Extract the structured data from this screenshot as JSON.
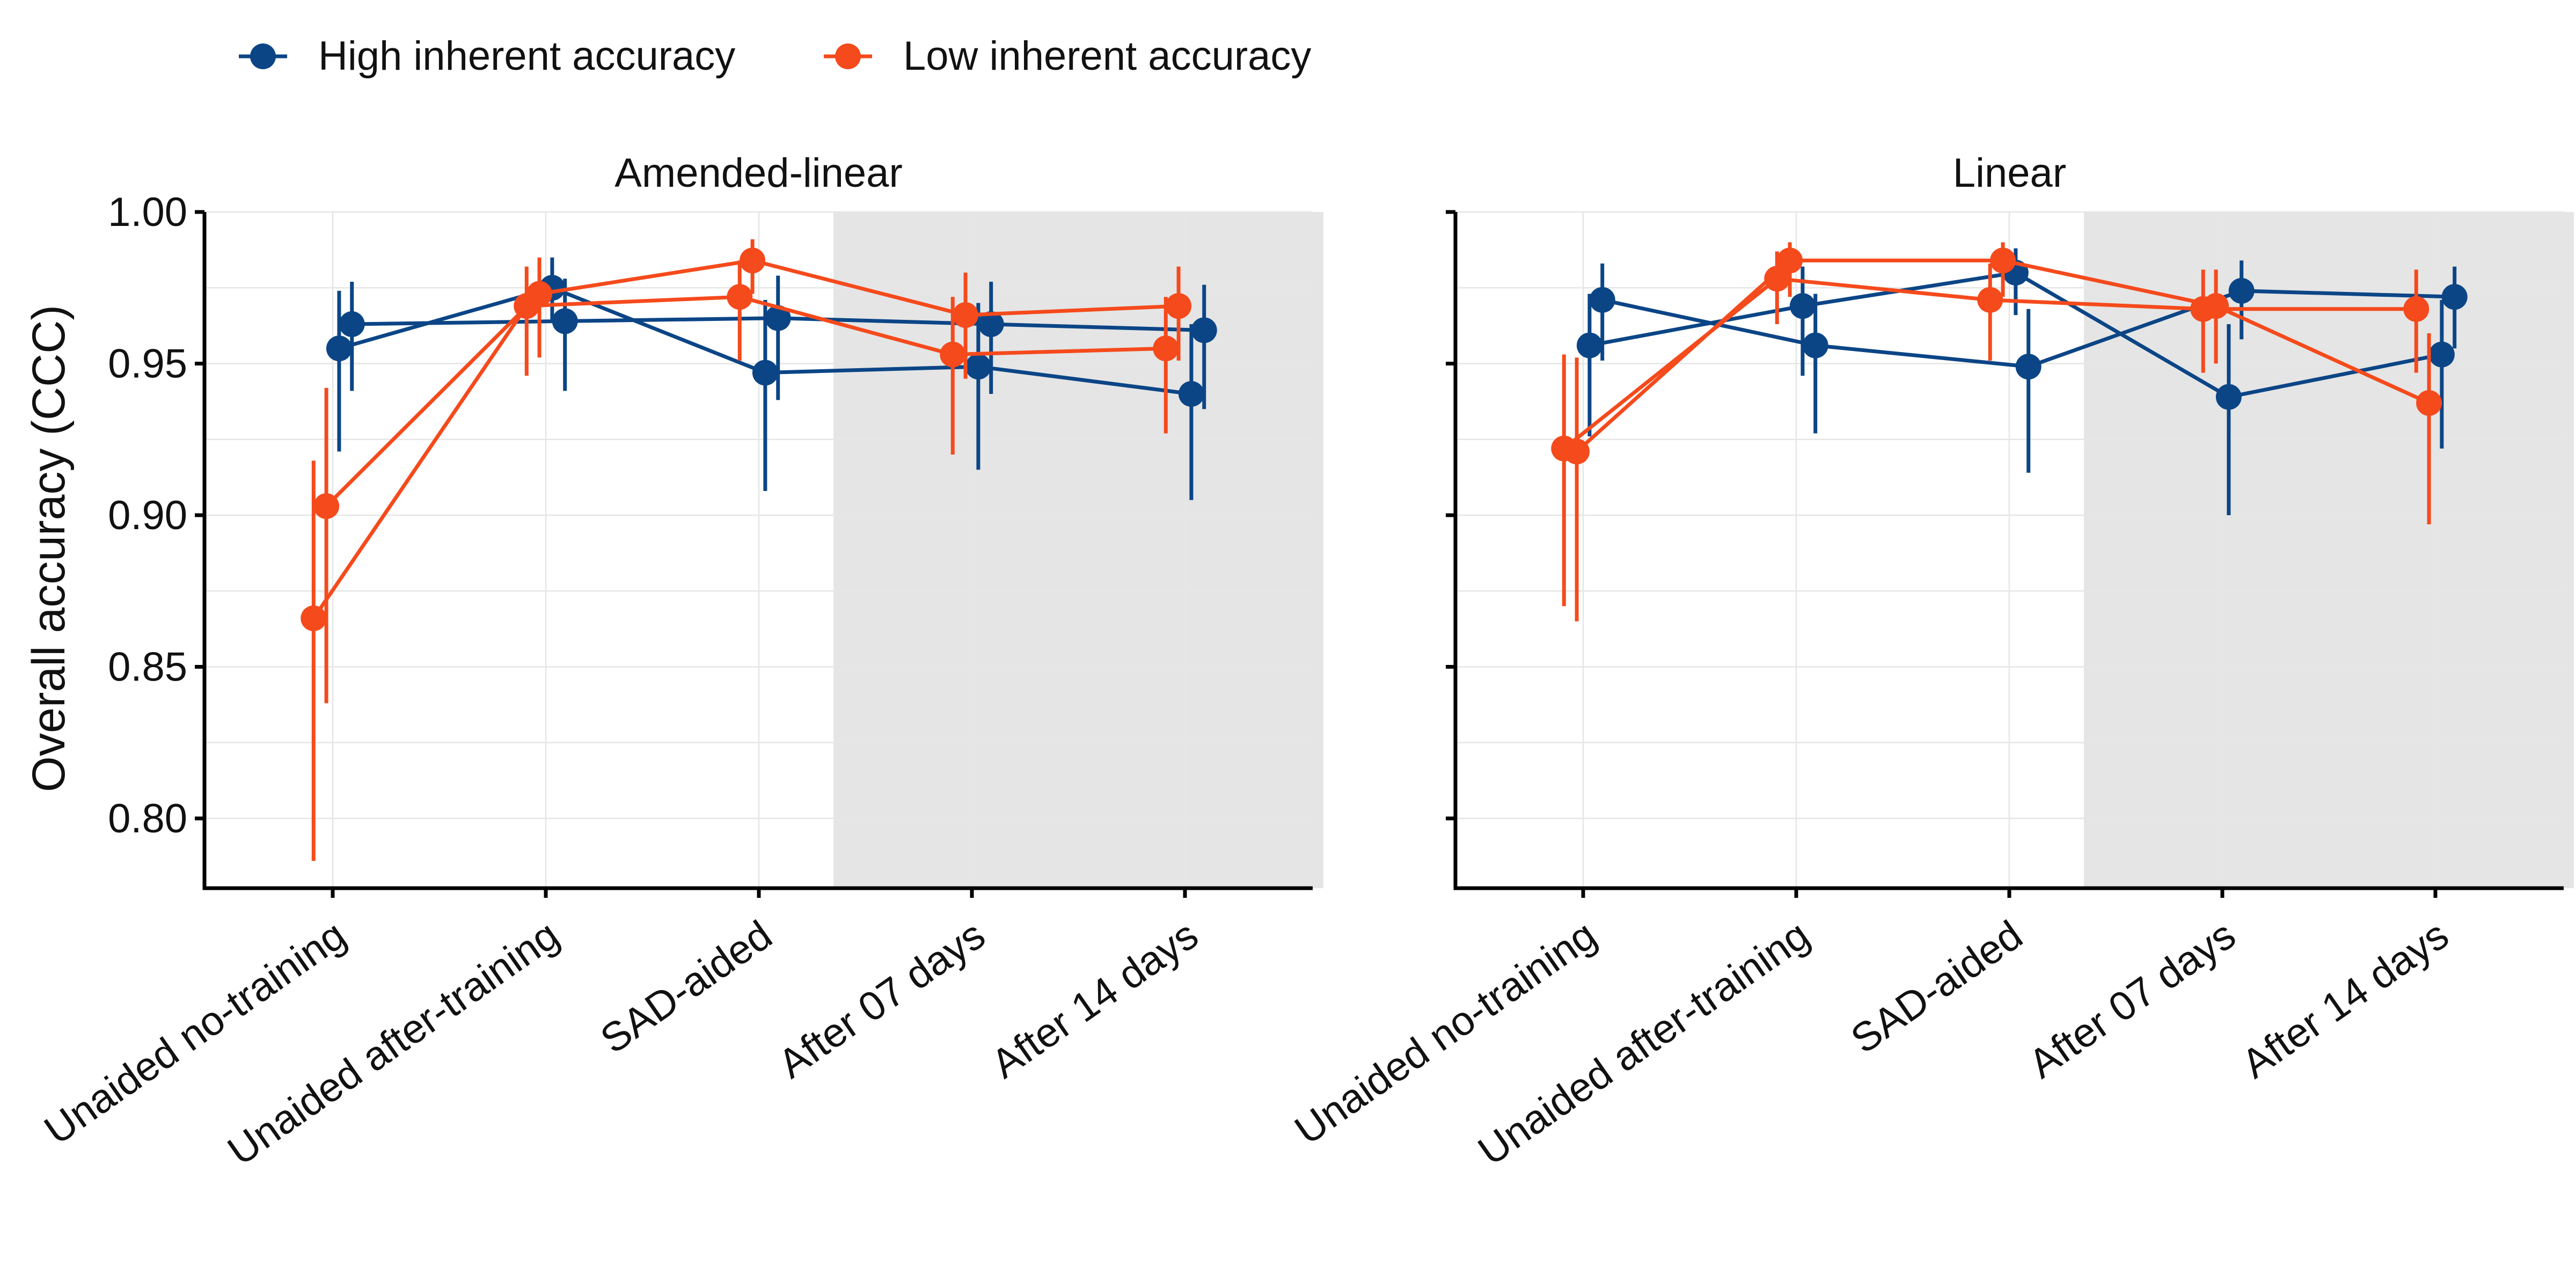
{
  "chart_data": {
    "type": "line",
    "ylabel": "Overall accuracy (CCC)",
    "xlabel": "",
    "yticks": [
      "0.80",
      "0.85",
      "0.90",
      "0.95",
      "1.00"
    ],
    "ylim": [
      0.777,
      1.0
    ],
    "categories": [
      "Unaided no-training",
      "Unaided after-training",
      "SAD-aided",
      "After 07 days",
      "After 14 days"
    ],
    "shaded_categories": [
      "After 07 days",
      "After 14 days"
    ],
    "grid": true,
    "legend": {
      "position": "top-left",
      "entries": [
        {
          "label": "High inherent accuracy",
          "color": "#0b4586"
        },
        {
          "label": "Low inherent accuracy",
          "color": "#f54a1c"
        }
      ]
    },
    "panels": [
      {
        "title": "Amended-linear",
        "series": [
          {
            "group": "High inherent accuracy",
            "color": "#0b4586",
            "offset": 0.03,
            "values": [
              0.955,
              0.975,
              0.947,
              0.949,
              0.94
            ],
            "lower": [
              0.921,
              0.964,
              0.908,
              0.915,
              0.905
            ],
            "upper": [
              0.974,
              0.985,
              0.971,
              0.97,
              0.963
            ]
          },
          {
            "group": "High inherent accuracy",
            "color": "#0b4586",
            "offset": 0.09,
            "values": [
              0.963,
              0.964,
              0.965,
              0.963,
              0.961
            ],
            "lower": [
              0.941,
              0.941,
              0.938,
              0.94,
              0.935
            ],
            "upper": [
              0.977,
              0.978,
              0.979,
              0.977,
              0.976
            ]
          },
          {
            "group": "Low inherent accuracy",
            "color": "#f54a1c",
            "offset": -0.09,
            "values": [
              0.866,
              0.969,
              0.972,
              0.953,
              0.955
            ],
            "lower": [
              0.786,
              0.946,
              0.951,
              0.92,
              0.927
            ],
            "upper": [
              0.918,
              0.982,
              0.984,
              0.972,
              0.972
            ]
          },
          {
            "group": "Low inherent accuracy",
            "color": "#f54a1c",
            "offset": -0.03,
            "values": [
              0.903,
              0.973,
              0.984,
              0.966,
              0.969
            ],
            "lower": [
              0.838,
              0.952,
              0.973,
              0.945,
              0.951
            ],
            "upper": [
              0.942,
              0.985,
              0.991,
              0.98,
              0.982
            ]
          }
        ]
      },
      {
        "title": "Linear",
        "series": [
          {
            "group": "High inherent accuracy",
            "color": "#0b4586",
            "offset": 0.03,
            "values": [
              0.956,
              0.969,
              0.98,
              0.939,
              0.953
            ],
            "lower": [
              0.926,
              0.946,
              0.966,
              0.9,
              0.922
            ],
            "upper": [
              0.973,
              0.982,
              0.988,
              0.963,
              0.971
            ]
          },
          {
            "group": "High inherent accuracy",
            "color": "#0b4586",
            "offset": 0.09,
            "values": [
              0.971,
              0.956,
              0.949,
              0.974,
              0.972
            ],
            "lower": [
              0.951,
              0.927,
              0.914,
              0.958,
              0.955
            ],
            "upper": [
              0.983,
              0.973,
              0.968,
              0.984,
              0.982
            ]
          },
          {
            "group": "Low inherent accuracy",
            "color": "#f54a1c",
            "offset": -0.09,
            "values": [
              0.922,
              0.978,
              0.971,
              0.968,
              0.968
            ],
            "lower": [
              0.87,
              0.963,
              0.951,
              0.947,
              0.947
            ],
            "upper": [
              0.953,
              0.987,
              0.983,
              0.981,
              0.981
            ]
          },
          {
            "group": "Low inherent accuracy",
            "color": "#f54a1c",
            "offset": -0.03,
            "values": [
              0.921,
              0.984,
              0.984,
              0.969,
              0.937
            ],
            "lower": [
              0.865,
              0.972,
              0.972,
              0.95,
              0.897
            ],
            "upper": [
              0.952,
              0.99,
              0.99,
              0.981,
              0.96
            ]
          }
        ]
      }
    ]
  }
}
